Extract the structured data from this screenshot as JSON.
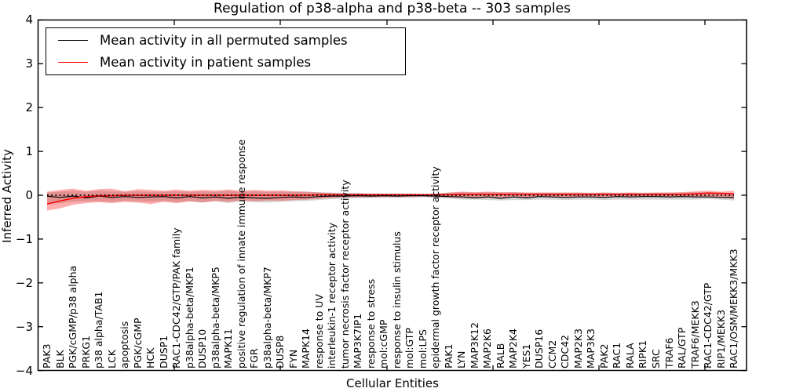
{
  "chart_data": {
    "type": "line",
    "title": "Regulation of p38-alpha and p38-beta -- 303 samples",
    "xlabel": "Cellular Entities",
    "ylabel": "Inferred Activity",
    "ylim": [
      -4,
      4
    ],
    "yticks": [
      -4,
      -3,
      -2,
      -1,
      0,
      1,
      2,
      3,
      4
    ],
    "grid": false,
    "legend_position": "upper left",
    "zero_line": {
      "style": "dotted",
      "color": "#000000",
      "y": 0
    },
    "categories": [
      "PAK3",
      "BLK",
      "PGK/cGMP/p38 alpha",
      "PRKG1",
      "p38 alpha/TAB1",
      "LCK",
      "apoptosis",
      "PGK/cGMP",
      "HCK",
      "DUSP1",
      "RAC1-CDC42/GTP/PAK family",
      "p38alpha-beta/MKP1",
      "DUSP10",
      "p38alpha-beta/MKP5",
      "MAPK11",
      "positive regulation of innate immune response",
      "FGR",
      "p38alpha-beta/MKP7",
      "DUSP8",
      "FYN",
      "MAPK14",
      "response to UV",
      "interleukin-1 receptor activity",
      "tumor necrosis factor receptor activity",
      "MAP3K7IP1",
      "response to stress",
      "mol:cGMP",
      "response to insulin stimulus",
      "mol:GTP",
      "mol:LPS",
      "epidermal growth factor receptor activity",
      "PAK1",
      "LYN",
      "MAP3K12",
      "MAP2K6",
      "RALB",
      "MAP2K4",
      "YES1",
      "DUSP16",
      "CCM2",
      "CDC42",
      "MAP2K3",
      "MAP3K3",
      "PAK2",
      "RAC1",
      "RALA",
      "RIPK1",
      "SRC",
      "TRAF6",
      "RAL/GTP",
      "TRAF6/MEKK3",
      "RAC1-CDC42/GTP",
      "RIP1/MEKK3",
      "RAC1/OSM/MEKK3/MKK3"
    ],
    "series": [
      {
        "name": "Mean activity in all permuted samples",
        "color": "#000000",
        "values": [
          -0.02,
          -0.05,
          -0.02,
          -0.06,
          -0.02,
          -0.05,
          -0.03,
          -0.05,
          -0.04,
          -0.03,
          -0.06,
          -0.03,
          -0.06,
          -0.04,
          -0.07,
          -0.04,
          -0.06,
          -0.07,
          -0.05,
          -0.04,
          -0.05,
          -0.03,
          -0.02,
          -0.02,
          -0.01,
          -0.02,
          -0.01,
          -0.02,
          -0.01,
          -0.01,
          -0.02,
          -0.03,
          -0.04,
          -0.06,
          -0.04,
          -0.07,
          -0.04,
          -0.06,
          -0.03,
          -0.04,
          -0.05,
          -0.04,
          -0.04,
          -0.05,
          -0.03,
          -0.04,
          -0.03,
          -0.03,
          -0.04,
          -0.03,
          -0.04,
          -0.04,
          -0.05,
          -0.05
        ]
      },
      {
        "name": "Mean activity in patient samples",
        "color": "#ff0000",
        "values": [
          -0.2,
          -0.13,
          -0.07,
          -0.03,
          -0.01,
          -0.01,
          0.0,
          0.0,
          0.0,
          0.0,
          0.0,
          0.0,
          0.0,
          0.0,
          0.0,
          0.0,
          0.0,
          0.0,
          0.0,
          0.0,
          0.0,
          0.01,
          0.01,
          0.01,
          0.01,
          0.01,
          0.01,
          0.01,
          0.01,
          0.01,
          0.01,
          0.01,
          0.02,
          0.02,
          0.02,
          0.02,
          0.02,
          0.02,
          0.02,
          0.02,
          0.02,
          0.02,
          0.02,
          0.02,
          0.02,
          0.02,
          0.02,
          0.02,
          0.02,
          0.02,
          0.03,
          0.05,
          0.04,
          0.03
        ]
      }
    ],
    "bands": [
      {
        "name": "permuted samples std band",
        "color": "rgba(0,0,0,0.16)",
        "upper": [
          0.06,
          0.08,
          0.1,
          0.08,
          0.1,
          0.09,
          0.08,
          0.09,
          0.08,
          0.08,
          0.09,
          0.08,
          0.09,
          0.08,
          0.1,
          0.08,
          0.09,
          0.08,
          0.08,
          0.08,
          0.08,
          0.07,
          0.06,
          0.05,
          0.05,
          0.04,
          0.04,
          0.04,
          0.04,
          0.03,
          0.04,
          0.06,
          0.07,
          0.06,
          0.07,
          0.06,
          0.07,
          0.06,
          0.06,
          0.06,
          0.06,
          0.06,
          0.06,
          0.06,
          0.06,
          0.06,
          0.06,
          0.06,
          0.06,
          0.06,
          0.07,
          0.07,
          0.07,
          0.04
        ],
        "lower": [
          -0.2,
          -0.18,
          -0.15,
          -0.14,
          -0.14,
          -0.15,
          -0.13,
          -0.14,
          -0.15,
          -0.13,
          -0.16,
          -0.14,
          -0.17,
          -0.14,
          -0.18,
          -0.14,
          -0.16,
          -0.17,
          -0.15,
          -0.14,
          -0.13,
          -0.11,
          -0.09,
          -0.08,
          -0.07,
          -0.07,
          -0.06,
          -0.06,
          -0.06,
          -0.05,
          -0.06,
          -0.08,
          -0.1,
          -0.1,
          -0.11,
          -0.12,
          -0.11,
          -0.11,
          -0.1,
          -0.1,
          -0.11,
          -0.1,
          -0.1,
          -0.11,
          -0.1,
          -0.1,
          -0.1,
          -0.1,
          -0.1,
          -0.1,
          -0.1,
          -0.09,
          -0.1,
          -0.12
        ]
      },
      {
        "name": "patient samples std band",
        "color": "rgba(255,0,0,0.32)",
        "upper": [
          0.08,
          0.12,
          0.15,
          0.1,
          0.14,
          0.15,
          0.09,
          0.14,
          0.12,
          0.1,
          0.13,
          0.1,
          0.12,
          0.11,
          0.13,
          0.1,
          0.12,
          0.1,
          0.11,
          0.09,
          0.08,
          0.06,
          0.05,
          0.04,
          0.04,
          0.03,
          0.03,
          0.03,
          0.03,
          0.02,
          0.03,
          0.06,
          0.08,
          0.07,
          0.08,
          0.07,
          0.07,
          0.06,
          0.06,
          0.06,
          0.06,
          0.06,
          0.05,
          0.06,
          0.05,
          0.06,
          0.05,
          0.06,
          0.06,
          0.07,
          0.09,
          0.1,
          0.08,
          0.1
        ],
        "lower": [
          -0.35,
          -0.3,
          -0.22,
          -0.18,
          -0.16,
          -0.18,
          -0.15,
          -0.17,
          -0.2,
          -0.15,
          -0.18,
          -0.14,
          -0.16,
          -0.13,
          -0.15,
          -0.12,
          -0.14,
          -0.12,
          -0.13,
          -0.11,
          -0.1,
          -0.08,
          -0.06,
          -0.05,
          -0.05,
          -0.04,
          -0.04,
          -0.04,
          -0.04,
          -0.03,
          -0.04,
          -0.05,
          -0.06,
          -0.05,
          -0.06,
          -0.05,
          -0.05,
          -0.05,
          -0.04,
          -0.05,
          -0.04,
          -0.05,
          -0.04,
          -0.04,
          -0.04,
          -0.05,
          -0.04,
          -0.04,
          -0.05,
          -0.04,
          -0.05,
          -0.04,
          -0.05,
          -0.08
        ]
      }
    ]
  }
}
